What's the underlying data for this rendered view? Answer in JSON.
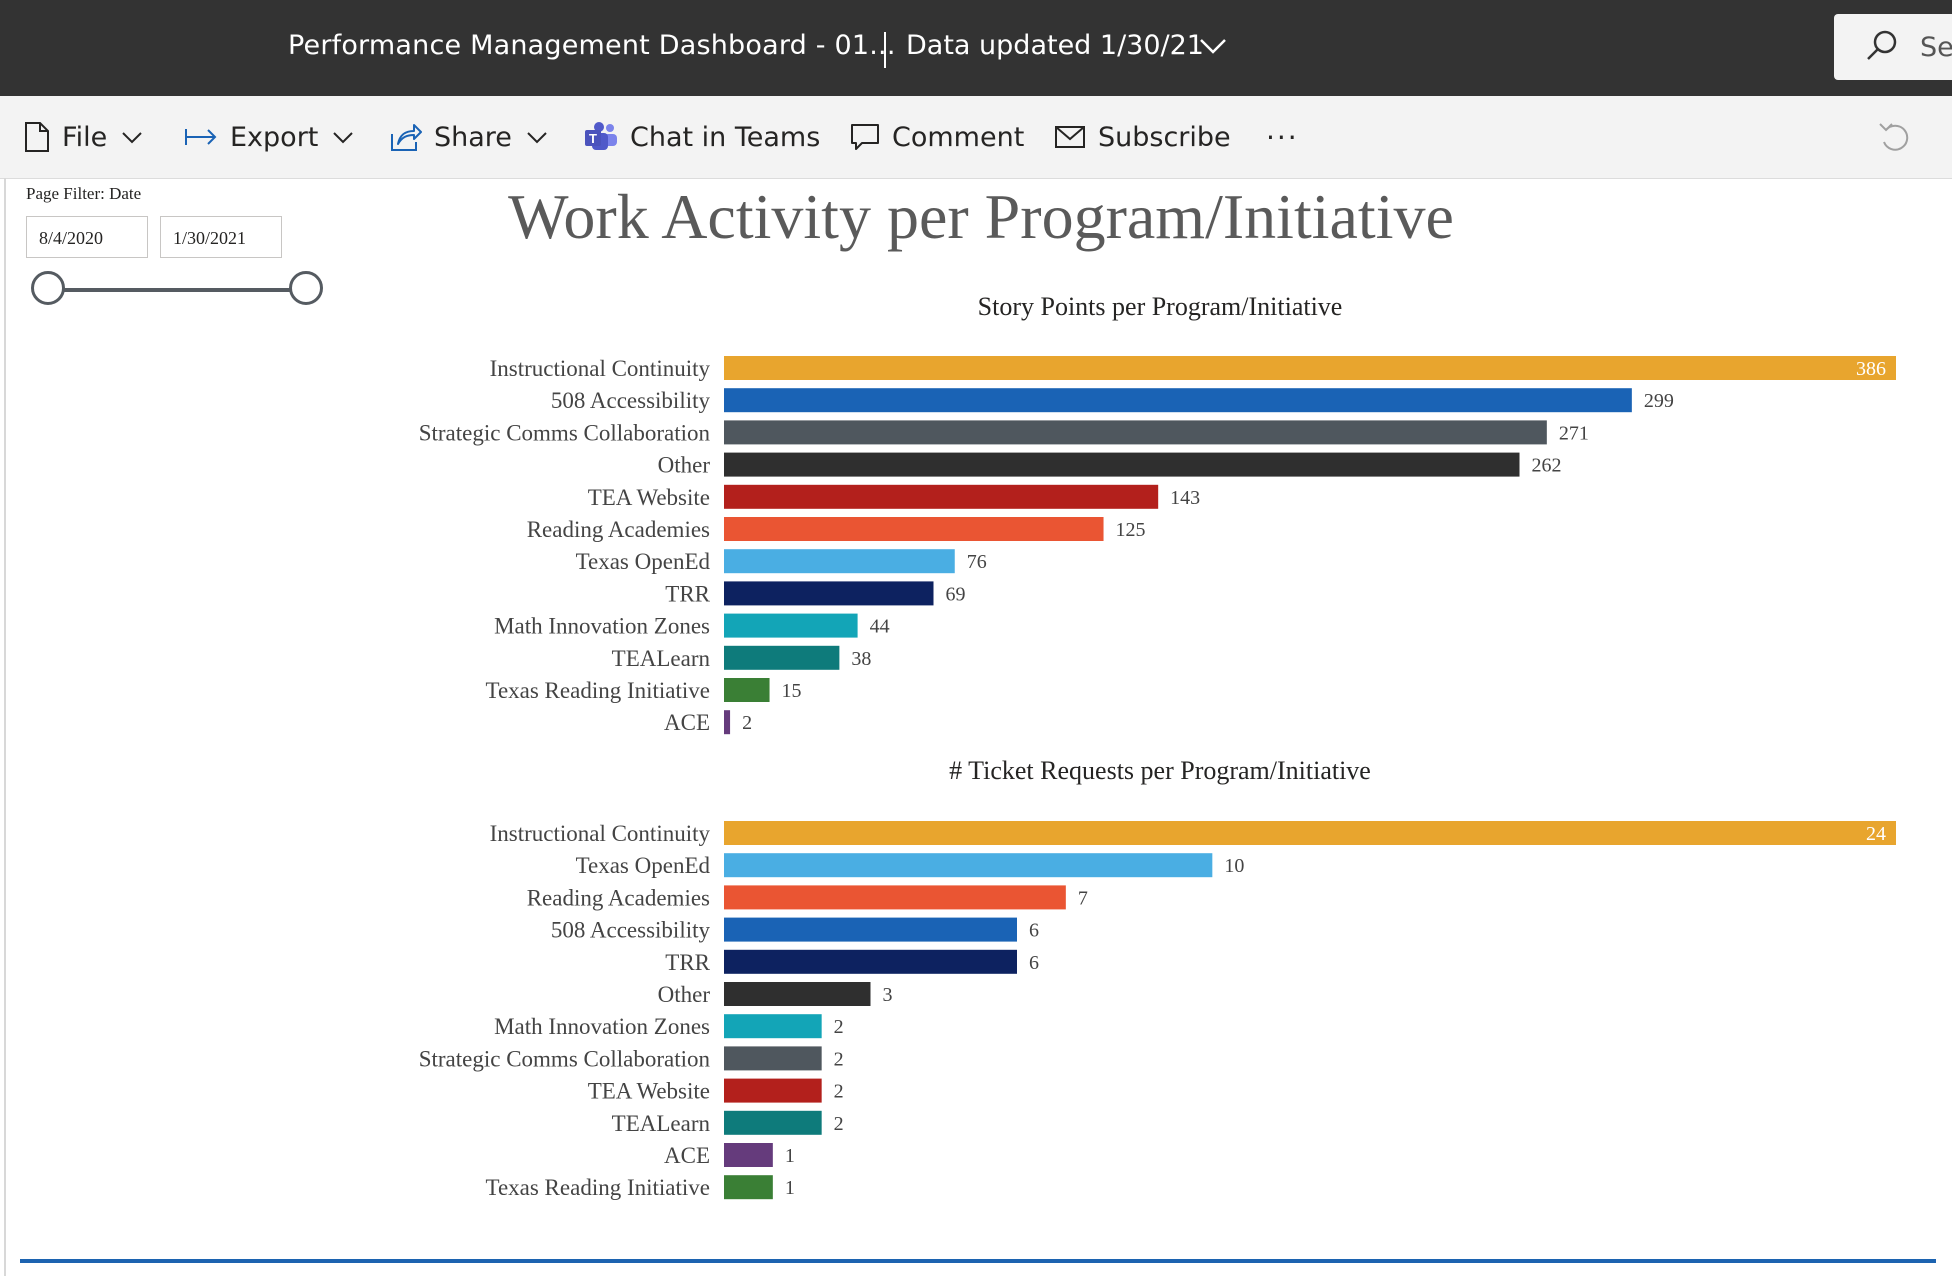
{
  "header": {
    "report_title": "Performance Management Dashboard - 01...",
    "data_updated": "Data updated 1/30/21",
    "search_placeholder": "Se"
  },
  "toolbar": {
    "file": "File",
    "export": "Export",
    "share": "Share",
    "chat_in_teams": "Chat in Teams",
    "comment": "Comment",
    "subscribe": "Subscribe",
    "more": "···"
  },
  "filter": {
    "label": "Page Filter: Date",
    "start_date": "8/4/2020",
    "end_date": "1/30/2021",
    "range_fraction": [
      0,
      1
    ]
  },
  "page_title": "Work Activity per Program/Initiative",
  "colors": {
    "Instructional Continuity": "#E8A52E",
    "508 Accessibility": "#1A63B5",
    "Strategic Comms Collaboration": "#4F575E",
    "Other": "#2F2F2F",
    "TEA Website": "#B3201C",
    "Reading Academies": "#EA5533",
    "Texas OpenEd": "#4AAEE3",
    "TRR": "#0D2260",
    "Math Innovation Zones": "#13A5B7",
    "TEALearn": "#0E7B7B",
    "Texas Reading Initiative": "#3A7F35",
    "ACE": "#653B7C"
  },
  "chart_data": [
    {
      "type": "bar",
      "orientation": "horizontal",
      "title": "Story Points per Program/Initiative",
      "categories": [
        "Instructional Continuity",
        "508 Accessibility",
        "Strategic Comms Collaboration",
        "Other",
        "TEA Website",
        "Reading Academies",
        "Texas OpenEd",
        "TRR",
        "Math Innovation Zones",
        "TEALearn",
        "Texas Reading Initiative",
        "ACE"
      ],
      "values": [
        386,
        299,
        271,
        262,
        143,
        125,
        76,
        69,
        44,
        38,
        15,
        2
      ],
      "xlim": [
        0,
        386
      ],
      "grid": false,
      "legend": false,
      "data_labels": true
    },
    {
      "type": "bar",
      "orientation": "horizontal",
      "title": "# Ticket Requests per Program/Initiative",
      "categories": [
        "Instructional Continuity",
        "Texas OpenEd",
        "Reading Academies",
        "508 Accessibility",
        "TRR",
        "Other",
        "Math Innovation Zones",
        "Strategic Comms Collaboration",
        "TEA Website",
        "TEALearn",
        "ACE",
        "Texas Reading Initiative"
      ],
      "values": [
        24,
        10,
        7,
        6,
        6,
        3,
        2,
        2,
        2,
        2,
        1,
        1
      ],
      "xlim": [
        0,
        24
      ],
      "grid": false,
      "legend": false,
      "data_labels": true
    }
  ]
}
